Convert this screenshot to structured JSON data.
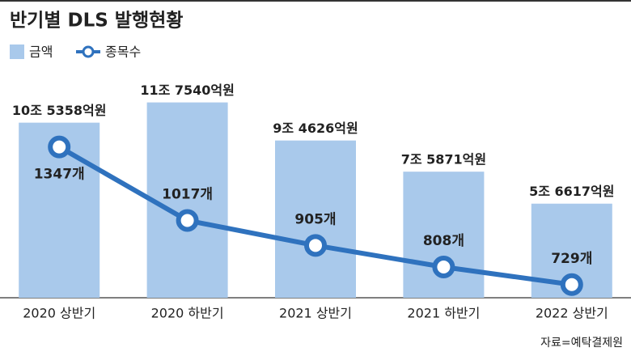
{
  "chart_data": {
    "type": "bar",
    "title": "반기별 DLS 발행현황",
    "source": "자료=예탁결제원",
    "categories": [
      "2020 상반기",
      "2020 하반기",
      "2021 상반기",
      "2021 하반기",
      "2022 상반기"
    ],
    "ylim": [
      0,
      130000
    ],
    "y2lim": [
      670,
      1640
    ],
    "series": [
      {
        "name": "금액",
        "type": "bar",
        "color": "#a9c9eb",
        "values": [
          105358,
          117540,
          94626,
          75871,
          56617
        ],
        "value_labels": [
          "10조 5358억원",
          "11조 7540억원",
          "9조 4626억원",
          "7조 5871억원",
          "5조 6617억원"
        ]
      },
      {
        "name": "종목수",
        "type": "line",
        "axis": "y2",
        "color": "#2f72be",
        "values": [
          1347,
          1017,
          905,
          808,
          729
        ],
        "value_labels": [
          "1347개",
          "1017개",
          "905개",
          "808개",
          "729개"
        ]
      }
    ]
  }
}
